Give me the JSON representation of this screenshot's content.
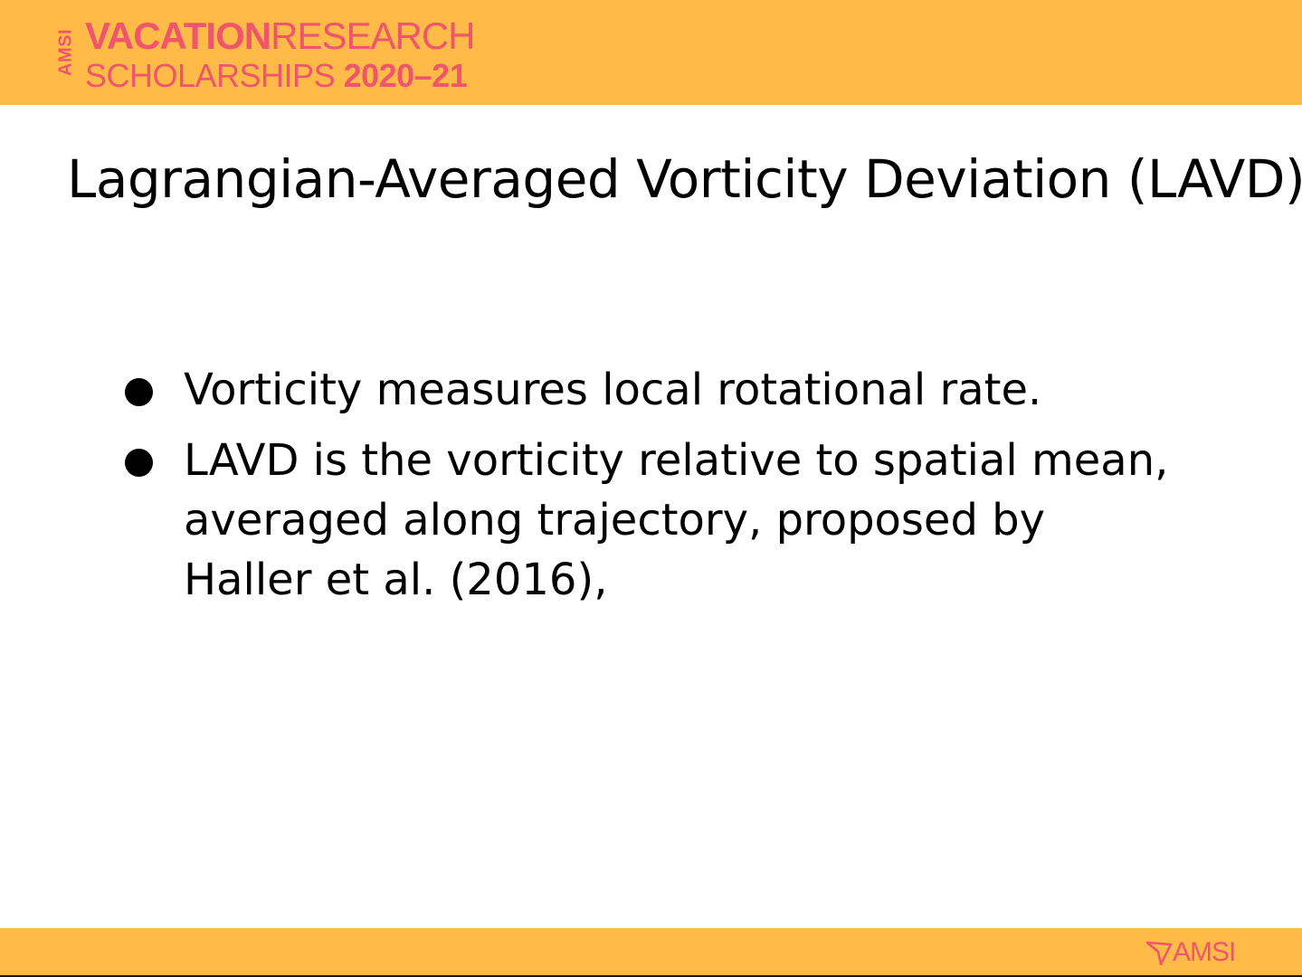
{
  "header": {
    "logo": {
      "vertical_text": "AMSI",
      "line1_bold": "VACATION",
      "line1_regular": "RESEARCH",
      "line2_regular": "SCHOLARSHIPS ",
      "line2_bold": "2020–21"
    }
  },
  "slide": {
    "title": "Lagrangian-Averaged Vorticity Deviation (LAVD)",
    "bullets": [
      {
        "text": "Vorticity measures local rotational rate."
      },
      {
        "text": "LAVD is the vorticity relative to spatial mean, averaged along trajectory, proposed by Haller et al. (2016),"
      }
    ]
  },
  "footer": {
    "logo_text": "AMSI",
    "logo_icon": "amsi-arrow-icon"
  },
  "colors": {
    "band": "#ffbb48",
    "brand": "#f0566b",
    "text": "#000000"
  }
}
